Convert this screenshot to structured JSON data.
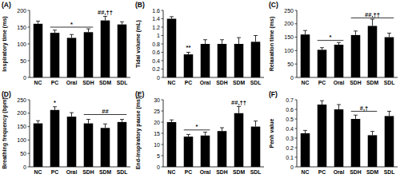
{
  "chart_data": [
    {
      "type": "bar",
      "title": "(A)",
      "y_label": "Inspiratory time (ms)",
      "categories": [
        "NC",
        "PC",
        "Oral",
        "SDH",
        "SDM",
        "SDL"
      ],
      "values": [
        160,
        133,
        118,
        135,
        170,
        158
      ],
      "errors": [
        8,
        8,
        10,
        10,
        12,
        8
      ],
      "color": "#000000",
      "ylim": [
        0,
        200
      ],
      "yticks": [
        0,
        50,
        100,
        150,
        200
      ],
      "annotations": [
        {
          "text": "*",
          "categories": [
            "PC",
            "SDH"
          ],
          "y": 150
        },
        {
          "text": "##,††",
          "categories": [
            "SDM",
            "SDM"
          ],
          "y": 185
        }
      ]
    },
    {
      "type": "bar",
      "title": "(B)",
      "y_label": "Tidal volume (mL)",
      "categories": [
        "NC",
        "PC",
        "Oral",
        "SDH",
        "SDM",
        "SDL"
      ],
      "values": [
        1.4,
        0.55,
        0.8,
        0.8,
        0.8,
        0.85
      ],
      "errors": [
        0.05,
        0.05,
        0.1,
        0.1,
        0.15,
        0.15
      ],
      "color": "#000000",
      "ylim": [
        0,
        1.6
      ],
      "yticks": [
        0,
        0.2,
        0.4,
        0.6,
        0.8,
        1,
        1.2,
        1.4,
        1.6
      ],
      "annotations": [
        {
          "text": "**",
          "categories": [
            "PC",
            "PC"
          ],
          "y": 0.63
        }
      ]
    },
    {
      "type": "bar",
      "title": "(C)",
      "y_label": "Relaxation time (ms)",
      "categories": [
        "NC",
        "PC",
        "Oral",
        "SDH",
        "SDM",
        "SDL"
      ],
      "values": [
        160,
        103,
        122,
        158,
        192,
        150
      ],
      "errors": [
        15,
        8,
        8,
        15,
        25,
        15
      ],
      "color": "#000000",
      "ylim": [
        0,
        250
      ],
      "yticks": [
        0,
        50,
        100,
        150,
        200,
        250
      ],
      "annotations": [
        {
          "text": "*",
          "categories": [
            "PC",
            "Oral"
          ],
          "y": 138
        },
        {
          "text": "##,††",
          "categories": [
            "SDH",
            "SDL"
          ],
          "y": 222
        }
      ]
    },
    {
      "type": "bar",
      "title": "(D)",
      "y_label": "Breathing frequency (bpm)",
      "categories": [
        "NC",
        "PC",
        "Oral",
        "SDH",
        "SDM",
        "SDL"
      ],
      "values": [
        162,
        212,
        187,
        162,
        145,
        167
      ],
      "errors": [
        10,
        12,
        15,
        15,
        15,
        10
      ],
      "color": "#000000",
      "ylim": [
        0,
        250
      ],
      "yticks": [
        0,
        50,
        100,
        150,
        200,
        250
      ],
      "annotations": [
        {
          "text": "*",
          "categories": [
            "PC",
            "PC"
          ],
          "y": 228
        },
        {
          "text": "##",
          "categories": [
            "SDH",
            "SDL"
          ],
          "y": 195
        }
      ]
    },
    {
      "type": "bar",
      "title": "(E)",
      "y_label": "End-inspiratory pause (ms)",
      "categories": [
        "NC",
        "PC",
        "Oral",
        "SDH",
        "SDM",
        "SDL"
      ],
      "values": [
        20,
        13.5,
        14,
        16,
        24,
        18
      ],
      "errors": [
        1,
        1,
        1.5,
        1.5,
        3,
        2.5
      ],
      "color": "#000000",
      "ylim": [
        0,
        30
      ],
      "yticks": [
        0,
        5,
        10,
        15,
        20,
        25,
        30
      ],
      "annotations": [
        {
          "text": "*",
          "categories": [
            "PC",
            "Oral"
          ],
          "y": 16.5
        },
        {
          "text": "##,††",
          "categories": [
            "SDM",
            "SDM"
          ],
          "y": 27.5
        }
      ]
    },
    {
      "type": "bar",
      "title": "(F)",
      "y_label": "Penh value",
      "categories": [
        "NC",
        "PC",
        "Oral",
        "SDH",
        "SDM",
        "SDL"
      ],
      "values": [
        0.35,
        0.65,
        0.6,
        0.5,
        0.33,
        0.53
      ],
      "errors": [
        0.03,
        0.04,
        0.05,
        0.04,
        0.04,
        0.05
      ],
      "color": "#000000",
      "ylim": [
        0,
        0.7
      ],
      "yticks": [
        0,
        0.1,
        0.2,
        0.3,
        0.4,
        0.5,
        0.6,
        0.7
      ],
      "annotations": [
        {
          "text": "#,†",
          "categories": [
            "SDH",
            "SDM"
          ],
          "y": 0.58
        }
      ]
    }
  ]
}
